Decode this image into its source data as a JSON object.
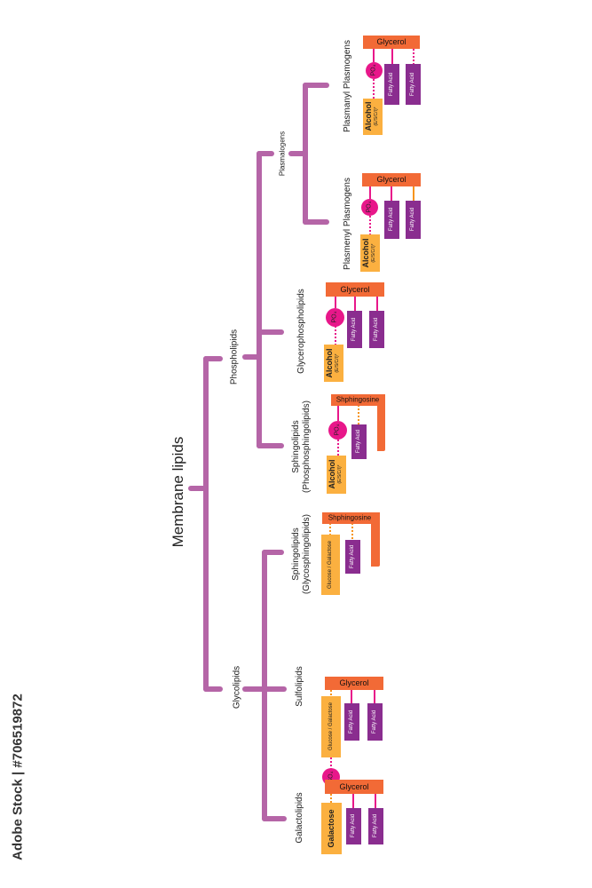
{
  "title": "Membrane lipids",
  "categories": {
    "phospholipids": "Phospholipids",
    "glycolipids": "Glycolipids",
    "plasmalogens": "Plasmalogens"
  },
  "subtypes": {
    "plasmanyl": "Plasmanyl Plasmogens",
    "plasmenyl": "Plasmenyl Plasmogens",
    "glycerophospholipids": "Glycerophospholipids",
    "sphingo_phospho_1": "Sphingolipids",
    "sphingo_phospho_2": "(Phosphosphingolipids)",
    "sphingo_glyco_1": "Sphingolipids",
    "sphingo_glyco_2": "(Glycosphingolipids)",
    "sulfolipids": "Sulfolipids",
    "galactolipids": "Galactolipids"
  },
  "labels": {
    "glycerol": "Glycerol",
    "sphingosine": "Shphingosine",
    "fatty_acid": "Fatty Acid",
    "po4": "PO₄",
    "alcohol": "Alcohol",
    "alcohol_sub": "(E/S/C/I)*",
    "glucose_galactose": "Glucose / Galactose",
    "galactose": "Galactose",
    "so4": "SO₄"
  },
  "watermark": "Adobe Stock | #706519872",
  "colors": {
    "tree": "#b565a7",
    "glycerol": "#f26a36",
    "fatty_acid": "#8a2d8f",
    "phosphate": "#e8178a",
    "alcohol": "#fbb040",
    "connector": "#e8178a",
    "ester": "#f7941d"
  }
}
